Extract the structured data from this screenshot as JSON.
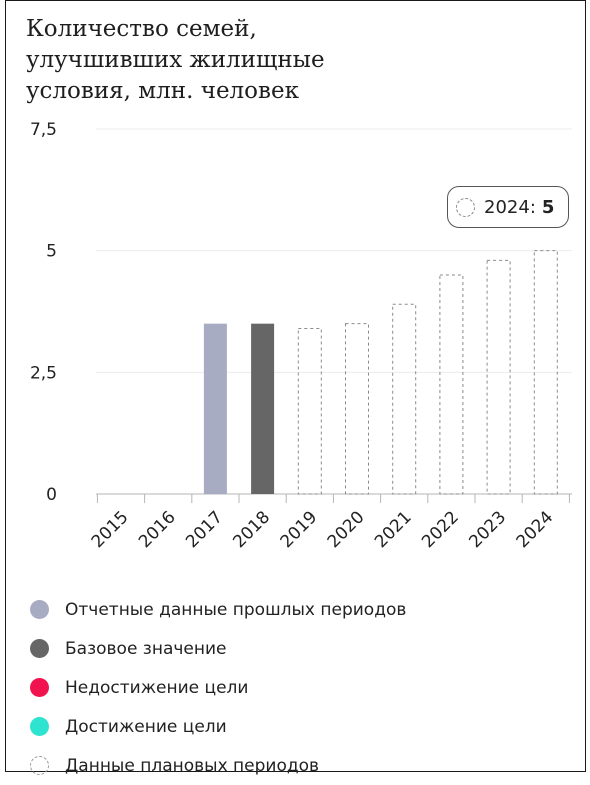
{
  "title_lines": [
    "Количество семей,",
    "улучшивших жилищные",
    "условия, млн. человек"
  ],
  "callout": {
    "year": "2024",
    "value": "5",
    "separator": ":"
  },
  "legend": [
    {
      "label": "Отчетные данные прошлых периодов",
      "color": "#a8acc2",
      "style": "filled"
    },
    {
      "label": "Базовое значение",
      "color": "#666666",
      "style": "filled"
    },
    {
      "label": "Недостижение цели",
      "color": "#f0134d",
      "style": "filled"
    },
    {
      "label": "Достижение цели",
      "color": "#2ee3cf",
      "style": "filled"
    },
    {
      "label": "Данные плановых периодов",
      "color": "#999999",
      "style": "dashed"
    }
  ],
  "chart_data": {
    "type": "bar",
    "categories": [
      "2015",
      "2016",
      "2017",
      "2018",
      "2019",
      "2020",
      "2021",
      "2022",
      "2023",
      "2024"
    ],
    "values": [
      null,
      null,
      3.5,
      3.5,
      3.4,
      3.5,
      3.9,
      4.5,
      4.8,
      5.0
    ],
    "bar_kinds": [
      null,
      null,
      "reported",
      "base",
      "planned",
      "planned",
      "planned",
      "planned",
      "planned",
      "planned"
    ],
    "yticks": [
      {
        "value": 0,
        "label": "0"
      },
      {
        "value": 2.5,
        "label": "2,5"
      },
      {
        "value": 5,
        "label": "5"
      },
      {
        "value": 7.5,
        "label": "7,5"
      }
    ],
    "ylim": [
      0,
      7.5
    ],
    "grid": true,
    "legend_position": "bottom"
  }
}
